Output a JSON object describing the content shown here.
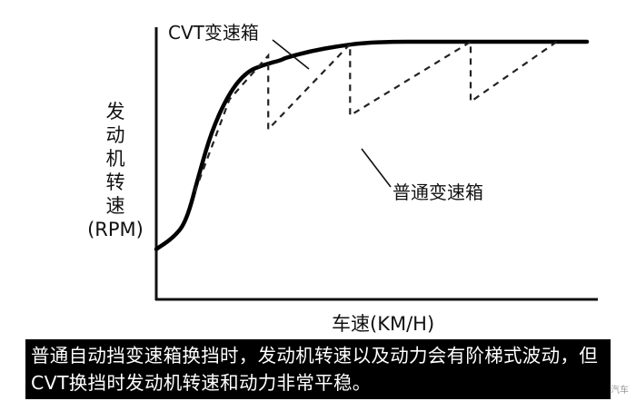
{
  "chart_data": {
    "type": "line",
    "xlabel": "车速(KM/H)",
    "ylabel": "发动机转速(RPM)",
    "ylabel_chars": [
      "发",
      "动",
      "机",
      "转",
      "速",
      "(RPM)"
    ],
    "ticks": "none",
    "grid": false,
    "xlim": [
      0,
      100
    ],
    "ylim": [
      0,
      100
    ],
    "series": [
      {
        "name": "CVT变速箱",
        "style": "solid",
        "x": [
          0,
          4,
          7,
          10,
          13,
          17,
          21,
          25,
          29,
          30,
          36,
          42,
          48,
          55,
          62,
          70,
          80,
          90,
          100
        ],
        "y": [
          10,
          15,
          22,
          43,
          62,
          78,
          87,
          90,
          92,
          93,
          96,
          98,
          99.5,
          100,
          100,
          100,
          100,
          100,
          100
        ]
      },
      {
        "name": "普通变速箱",
        "style": "dashed",
        "x": [
          9,
          17,
          26,
          26,
          45,
          45,
          73,
          73,
          93
        ],
        "y": [
          35,
          75,
          94,
          62,
          99,
          68,
          100,
          74,
          100
        ]
      }
    ]
  },
  "annotations": {
    "cvt_label": "CVT变速箱",
    "normal_label": "普通变速箱"
  },
  "caption": "普通自动挡变速箱换挡时，发动机转速以及动力会有阶梯式波动，但CVT换挡时发动机转速和动力非常平稳。",
  "watermark": "汽车"
}
